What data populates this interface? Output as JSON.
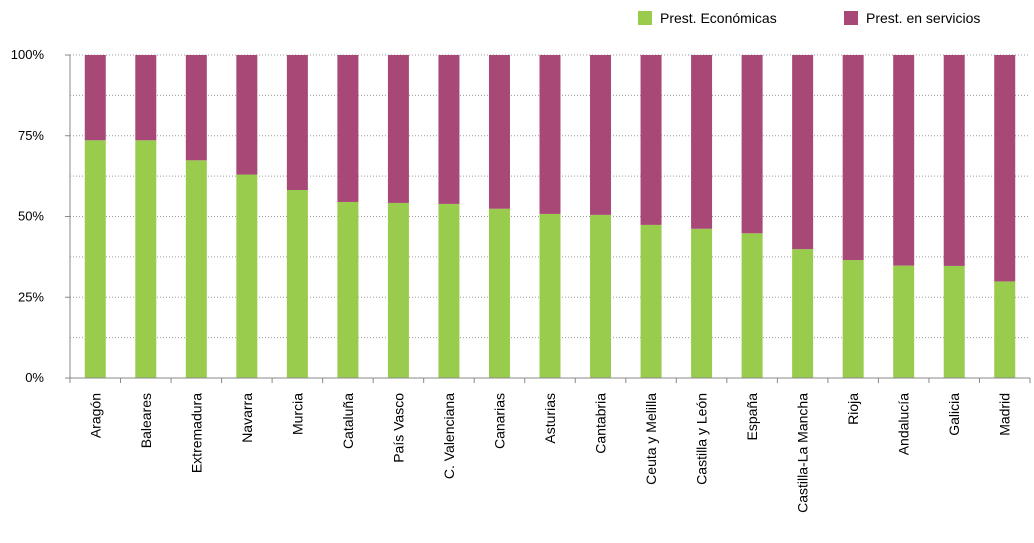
{
  "chart_data": {
    "type": "bar",
    "stacked": true,
    "categories": [
      "Aragón",
      "Baleares",
      "Extremadura",
      "Navarra",
      "Murcia",
      "Cataluña",
      "País Vasco",
      "C. Valenciana",
      "Canarias",
      "Asturias",
      "Cantabria",
      "Ceuta y Melilla",
      "Castilla y León",
      "España",
      "Castilla-La Mancha",
      "Rioja",
      "Andalucía",
      "Galicia",
      "Madrid"
    ],
    "series": [
      {
        "name": "Prest. Económicas",
        "color": "#99cc4d",
        "values": [
          73.6,
          73.6,
          67.4,
          63,
          58.2,
          54.5,
          54.2,
          53.9,
          52.4,
          50.8,
          50.5,
          47.4,
          46.2,
          44.8,
          39.9,
          36.5,
          34.8,
          34.7,
          29.9
        ]
      },
      {
        "name": "Prest. en servicios",
        "color": "#a84877",
        "values": [
          26.4,
          26.4,
          32.6,
          37,
          41.8,
          45.5,
          45.8,
          46.1,
          47.6,
          49.2,
          49.5,
          52.6,
          53.8,
          55.2,
          60.1,
          63.5,
          65.2,
          65.3,
          70.1
        ]
      }
    ],
    "yticks": [
      "0%",
      "25%",
      "50%",
      "75%",
      "100%"
    ],
    "ylim": [
      0,
      100
    ],
    "grid": "dotted",
    "legend": "top-right"
  }
}
